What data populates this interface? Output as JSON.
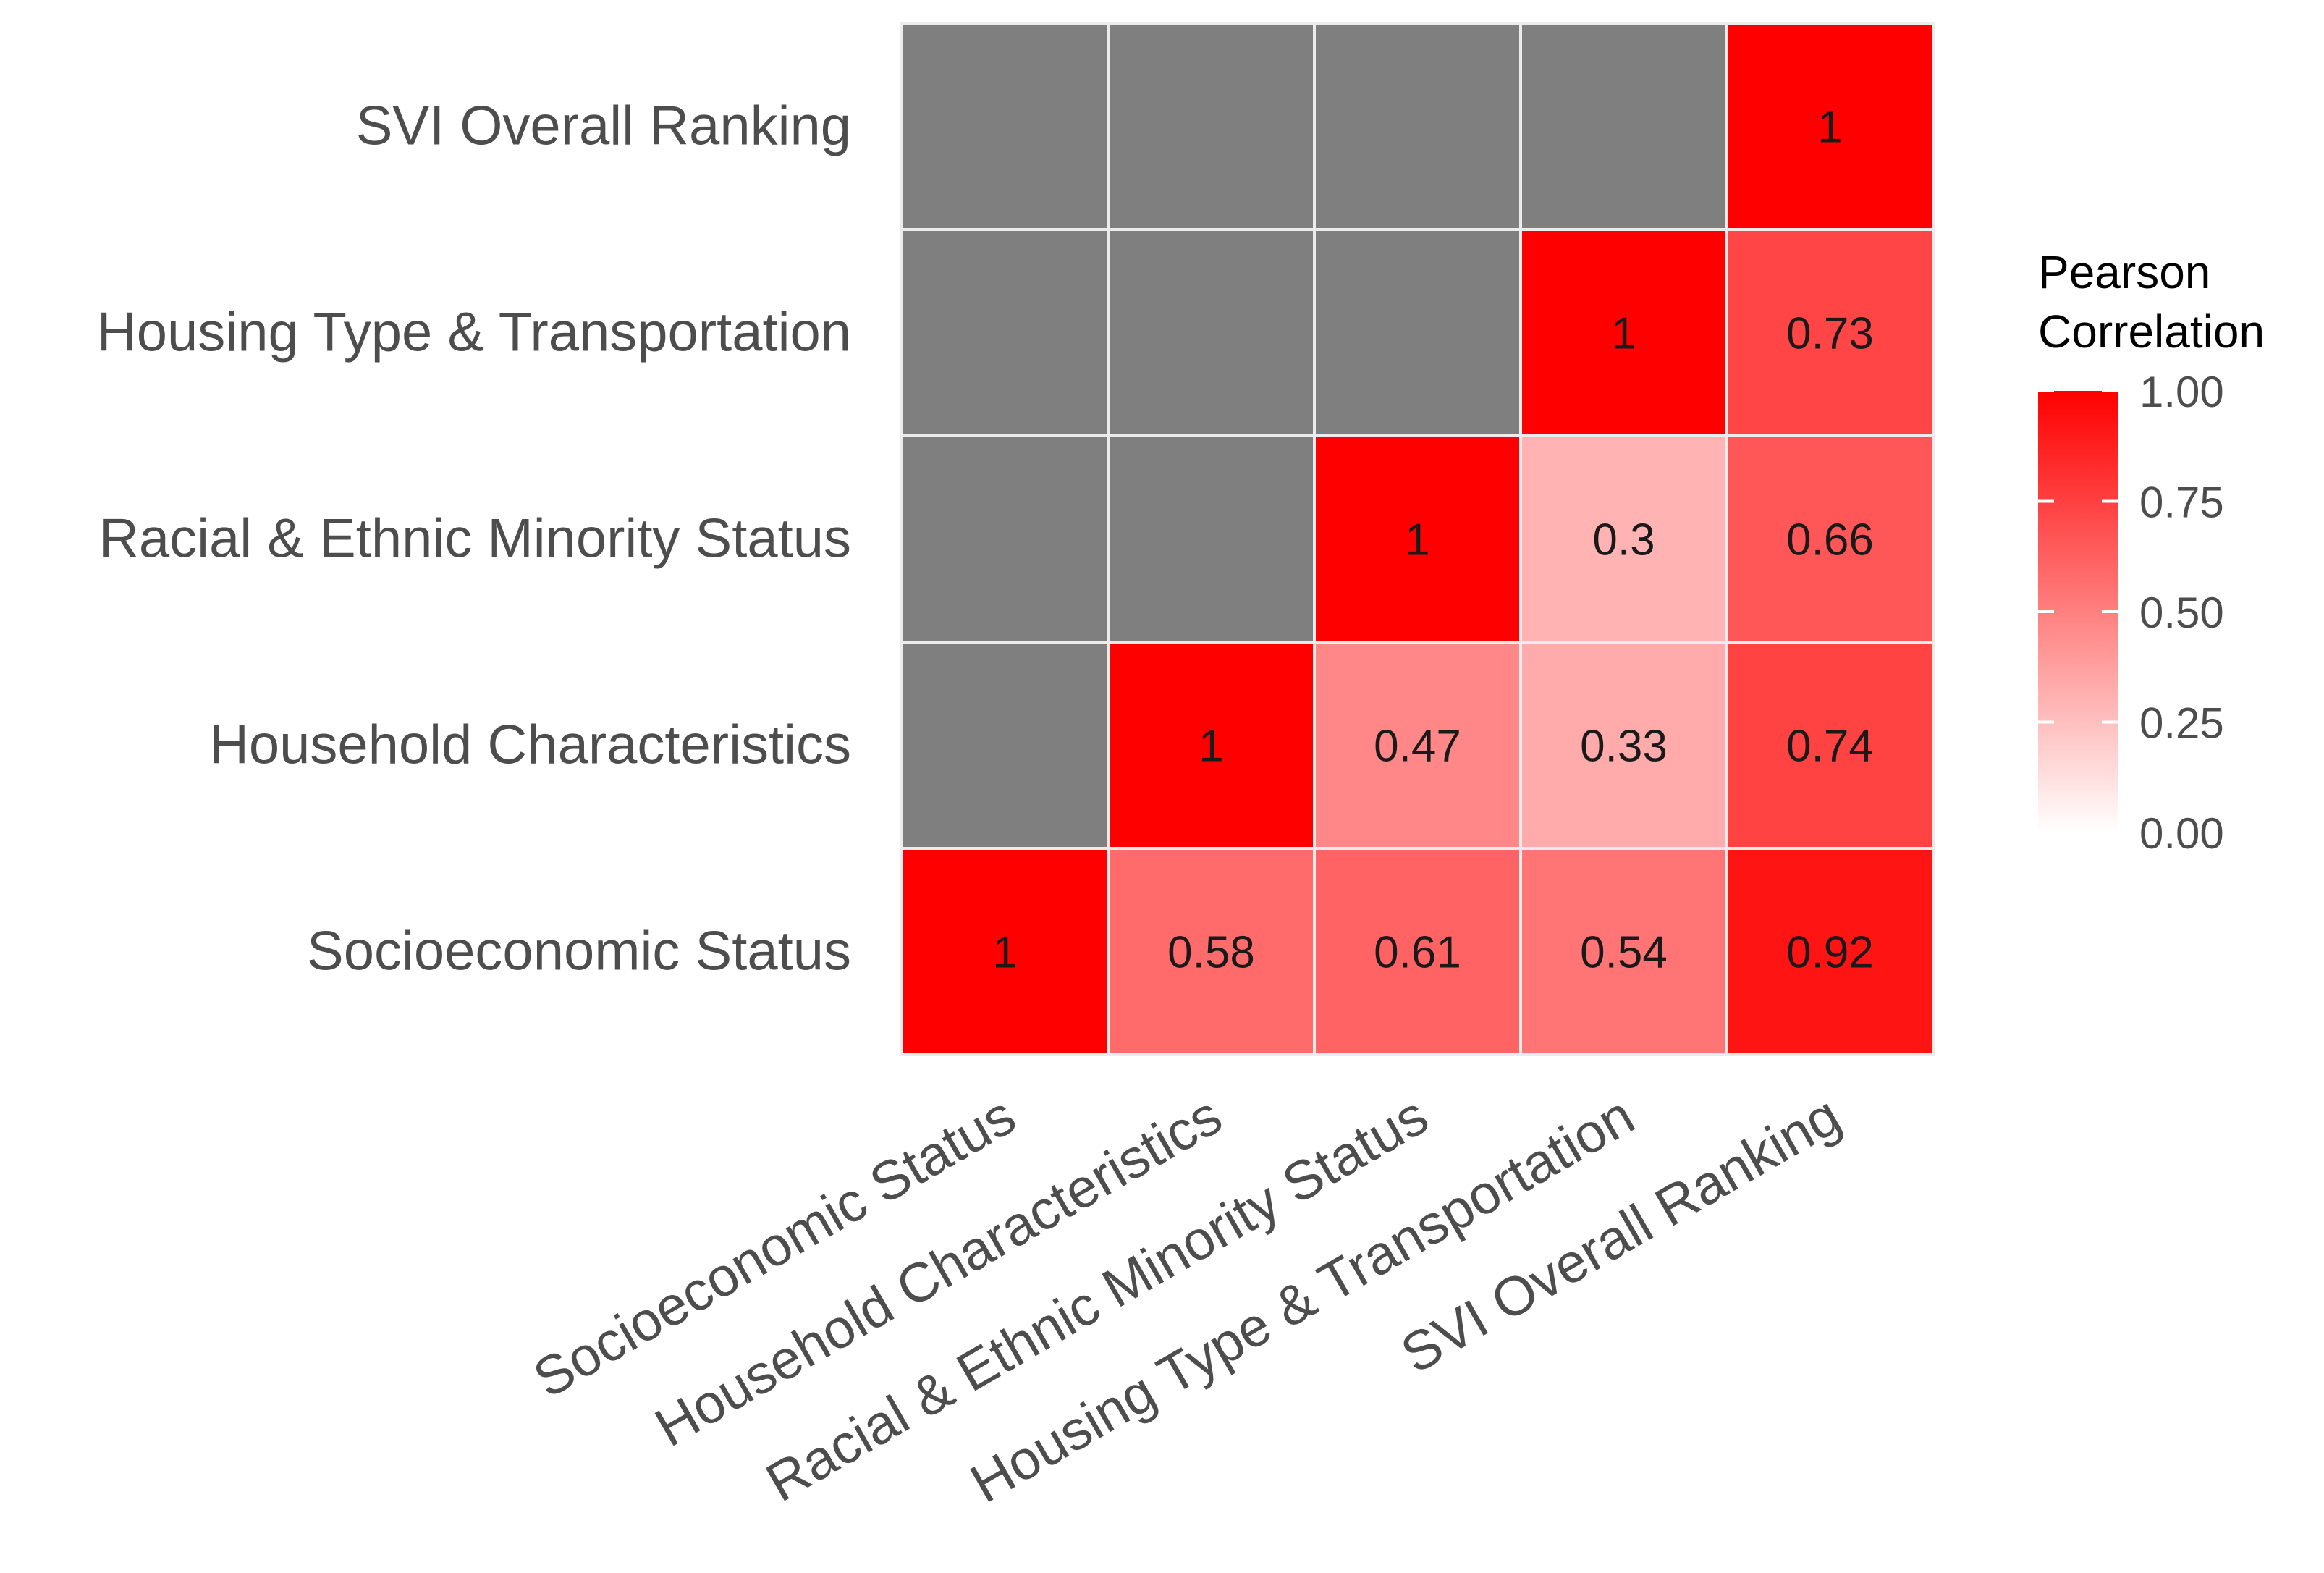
{
  "chart_data": {
    "type": "heatmap",
    "x_categories": [
      "Socioeconomic Status",
      "Household Characteristics",
      "Racial & Ethnic Minority Status",
      "Housing Type & Transportation",
      "SVI Overall Ranking"
    ],
    "y_categories": [
      "Socioeconomic Status",
      "Household Characteristics",
      "Racial & Ethnic Minority Status",
      "Housing Type & Transportation",
      "SVI Overall Ranking"
    ],
    "cells": [
      {
        "x": "Socioeconomic Status",
        "y": "Socioeconomic Status",
        "value": 1,
        "label": "1"
      },
      {
        "x": "Household Characteristics",
        "y": "Socioeconomic Status",
        "value": 0.58,
        "label": "0.58"
      },
      {
        "x": "Racial & Ethnic Minority Status",
        "y": "Socioeconomic Status",
        "value": 0.61,
        "label": "0.61"
      },
      {
        "x": "Housing Type & Transportation",
        "y": "Socioeconomic Status",
        "value": 0.54,
        "label": "0.54"
      },
      {
        "x": "SVI Overall Ranking",
        "y": "Socioeconomic Status",
        "value": 0.92,
        "label": "0.92"
      },
      {
        "x": "Socioeconomic Status",
        "y": "Household Characteristics",
        "value": null,
        "label": ""
      },
      {
        "x": "Household Characteristics",
        "y": "Household Characteristics",
        "value": 1,
        "label": "1"
      },
      {
        "x": "Racial & Ethnic Minority Status",
        "y": "Household Characteristics",
        "value": 0.47,
        "label": "0.47"
      },
      {
        "x": "Housing Type & Transportation",
        "y": "Household Characteristics",
        "value": 0.33,
        "label": "0.33"
      },
      {
        "x": "SVI Overall Ranking",
        "y": "Household Characteristics",
        "value": 0.74,
        "label": "0.74"
      },
      {
        "x": "Socioeconomic Status",
        "y": "Racial & Ethnic Minority Status",
        "value": null,
        "label": ""
      },
      {
        "x": "Household Characteristics",
        "y": "Racial & Ethnic Minority Status",
        "value": null,
        "label": ""
      },
      {
        "x": "Racial & Ethnic Minority Status",
        "y": "Racial & Ethnic Minority Status",
        "value": 1,
        "label": "1"
      },
      {
        "x": "Housing Type & Transportation",
        "y": "Racial & Ethnic Minority Status",
        "value": 0.3,
        "label": "0.3"
      },
      {
        "x": "SVI Overall Ranking",
        "y": "Racial & Ethnic Minority Status",
        "value": 0.66,
        "label": "0.66"
      },
      {
        "x": "Socioeconomic Status",
        "y": "Housing Type & Transportation",
        "value": null,
        "label": ""
      },
      {
        "x": "Household Characteristics",
        "y": "Housing Type & Transportation",
        "value": null,
        "label": ""
      },
      {
        "x": "Racial & Ethnic Minority Status",
        "y": "Housing Type & Transportation",
        "value": null,
        "label": ""
      },
      {
        "x": "Housing Type & Transportation",
        "y": "Housing Type & Transportation",
        "value": 1,
        "label": "1"
      },
      {
        "x": "SVI Overall Ranking",
        "y": "Housing Type & Transportation",
        "value": 0.73,
        "label": "0.73"
      },
      {
        "x": "Socioeconomic Status",
        "y": "SVI Overall Ranking",
        "value": null,
        "label": ""
      },
      {
        "x": "Household Characteristics",
        "y": "SVI Overall Ranking",
        "value": null,
        "label": ""
      },
      {
        "x": "Racial & Ethnic Minority Status",
        "y": "SVI Overall Ranking",
        "value": null,
        "label": ""
      },
      {
        "x": "Housing Type & Transportation",
        "y": "SVI Overall Ranking",
        "value": null,
        "label": ""
      },
      {
        "x": "SVI Overall Ranking",
        "y": "SVI Overall Ranking",
        "value": 1,
        "label": "1"
      }
    ],
    "legend": {
      "title_line1": "Pearson",
      "title_line2": "Correlation",
      "ticks": [
        {
          "value": 1.0,
          "label": "1.00"
        },
        {
          "value": 0.75,
          "label": "0.75"
        },
        {
          "value": 0.5,
          "label": "0.50"
        },
        {
          "value": 0.25,
          "label": "0.25"
        },
        {
          "value": 0.0,
          "label": "0.00"
        }
      ],
      "range": [
        0,
        1
      ],
      "position": "right"
    },
    "colors": {
      "low": "#ffffff",
      "high": "#ff0000",
      "na": "#7f7f7f",
      "grid": "#ececec",
      "axis_text": "#4d4d4d",
      "cell_text": "#1a1a1a",
      "legend_title": "#000000"
    }
  }
}
